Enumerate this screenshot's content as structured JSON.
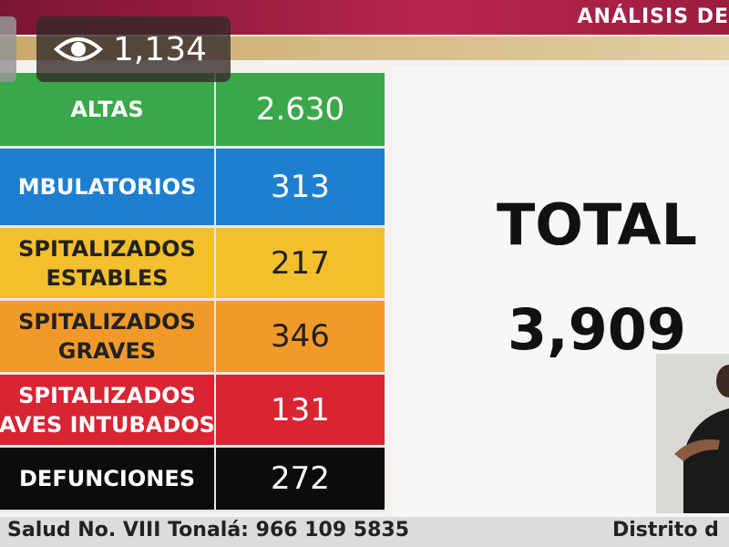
{
  "header": {
    "title": "ANÁLISIS DE"
  },
  "views": "1,134",
  "table": {
    "rows": [
      {
        "label": [
          "ALTAS"
        ],
        "value": "2.630"
      },
      {
        "label": [
          "MBULATORIOS"
        ],
        "value": "313"
      },
      {
        "label": [
          "SPITALIZADOS",
          "ESTABLES"
        ],
        "value": "217"
      },
      {
        "label": [
          "SPITALIZADOS",
          "GRAVES"
        ],
        "value": "346"
      },
      {
        "label": [
          "SPITALIZADOS",
          "AVES INTUBADOS"
        ],
        "value": "131"
      },
      {
        "label": [
          "DEFUNCIONES"
        ],
        "value": "272"
      }
    ]
  },
  "total": {
    "label": "TOTAL",
    "value": "3,909"
  },
  "ticker": [
    "Salud No. VIII Tonalá: 966 109 5835",
    "Distrito d"
  ]
}
